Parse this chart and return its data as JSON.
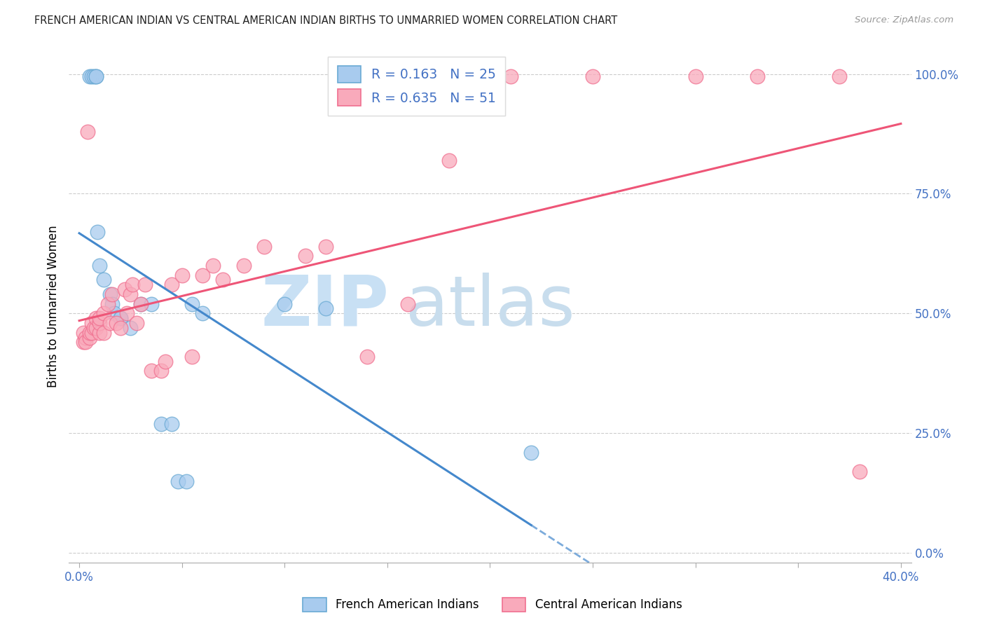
{
  "title": "FRENCH AMERICAN INDIAN VS CENTRAL AMERICAN INDIAN BIRTHS TO UNMARRIED WOMEN CORRELATION CHART",
  "source": "Source: ZipAtlas.com",
  "ylabel": "Births to Unmarried Women",
  "right_yticks": [
    0.0,
    0.25,
    0.5,
    0.75,
    1.0
  ],
  "right_yticklabels": [
    "0.0%",
    "25.0%",
    "50.0%",
    "75.0%",
    "100.0%"
  ],
  "xlim": [
    -0.005,
    0.405
  ],
  "ylim": [
    -0.02,
    1.05
  ],
  "blue_r": 0.163,
  "blue_n": 25,
  "pink_r": 0.635,
  "pink_n": 51,
  "legend_label_blue": "French American Indians",
  "legend_label_pink": "Central American Indians",
  "blue_fill": "#A8CBEE",
  "pink_fill": "#F9AABB",
  "blue_edge": "#6AAAD4",
  "pink_edge": "#F07090",
  "blue_line_color": "#4488CC",
  "pink_line_color": "#EE5577",
  "grid_color": "#CCCCCC",
  "watermark_zip_color": "#C8E0F4",
  "watermark_atlas_color": "#C8DDED",
  "title_color": "#222222",
  "axis_color": "#4472C4",
  "text_color_black": "#333333",
  "blue_scatter_x": [
    0.005,
    0.006,
    0.007,
    0.008,
    0.008,
    0.009,
    0.01,
    0.012,
    0.015,
    0.016,
    0.017,
    0.02,
    0.02,
    0.025,
    0.03,
    0.035,
    0.04,
    0.045,
    0.048,
    0.052,
    0.055,
    0.06,
    0.1,
    0.12,
    0.22
  ],
  "blue_scatter_y": [
    0.995,
    0.995,
    0.995,
    0.995,
    0.995,
    0.67,
    0.6,
    0.57,
    0.54,
    0.52,
    0.5,
    0.49,
    0.49,
    0.47,
    0.52,
    0.52,
    0.27,
    0.27,
    0.15,
    0.15,
    0.52,
    0.5,
    0.52,
    0.51,
    0.21
  ],
  "pink_scatter_x": [
    0.002,
    0.002,
    0.003,
    0.003,
    0.004,
    0.005,
    0.005,
    0.006,
    0.006,
    0.007,
    0.008,
    0.008,
    0.01,
    0.01,
    0.01,
    0.012,
    0.012,
    0.014,
    0.015,
    0.016,
    0.018,
    0.02,
    0.022,
    0.023,
    0.025,
    0.026,
    0.028,
    0.03,
    0.032,
    0.035,
    0.04,
    0.042,
    0.045,
    0.05,
    0.055,
    0.06,
    0.065,
    0.07,
    0.08,
    0.09,
    0.11,
    0.12,
    0.14,
    0.16,
    0.18,
    0.21,
    0.25,
    0.3,
    0.33,
    0.37,
    0.38
  ],
  "pink_scatter_y": [
    0.44,
    0.46,
    0.45,
    0.44,
    0.88,
    0.45,
    0.46,
    0.46,
    0.48,
    0.47,
    0.47,
    0.49,
    0.46,
    0.48,
    0.49,
    0.46,
    0.5,
    0.52,
    0.48,
    0.54,
    0.48,
    0.47,
    0.55,
    0.5,
    0.54,
    0.56,
    0.48,
    0.52,
    0.56,
    0.38,
    0.38,
    0.4,
    0.56,
    0.58,
    0.41,
    0.58,
    0.6,
    0.57,
    0.6,
    0.64,
    0.62,
    0.64,
    0.41,
    0.52,
    0.82,
    0.995,
    0.995,
    0.995,
    0.995,
    0.995,
    0.17
  ],
  "blue_line_xrange": [
    0.0,
    0.4
  ],
  "pink_line_xrange": [
    0.0,
    0.4
  ]
}
